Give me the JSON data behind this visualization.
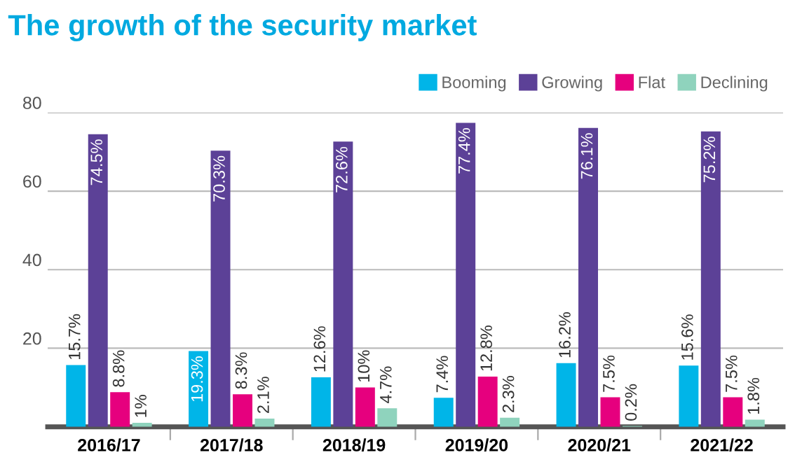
{
  "chart_data": {
    "type": "bar",
    "title": "The growth of the security market",
    "categories": [
      "2016/17",
      "2017/18",
      "2018/19",
      "2019/20",
      "2020/21",
      "2021/22"
    ],
    "series": [
      {
        "name": "Booming",
        "color": "#00b5e8",
        "values": [
          15.7,
          19.3,
          12.6,
          7.4,
          16.2,
          15.6
        ],
        "value_labels": [
          "15.7%",
          "19.3%",
          "12.6%",
          "7.4%",
          "16.2%",
          "15.6%"
        ]
      },
      {
        "name": "Growing",
        "color": "#5c4197",
        "values": [
          74.5,
          70.3,
          72.6,
          77.4,
          76.1,
          75.2
        ],
        "value_labels": [
          "74.5%",
          "70.3%",
          "72.6%",
          "77.4%",
          "76.1%",
          "75.2%"
        ]
      },
      {
        "name": "Flat",
        "color": "#e6007e",
        "values": [
          8.8,
          8.3,
          10,
          12.8,
          7.5,
          7.5
        ],
        "value_labels": [
          "8.8%",
          "8.3%",
          "10%",
          "12.8%",
          "7.5%",
          "7.5%"
        ]
      },
      {
        "name": "Declining",
        "color": "#8fd3bd",
        "values": [
          1,
          2.1,
          4.7,
          2.3,
          0.2,
          1.8
        ],
        "value_labels": [
          "1%",
          "2.1%",
          "4.7%",
          "2.3%",
          "0.2%",
          "1.8%"
        ]
      }
    ],
    "ylim": [
      0,
      80
    ],
    "yticks": [
      20,
      40,
      60,
      80
    ],
    "grid": "y",
    "legend": "top right"
  }
}
